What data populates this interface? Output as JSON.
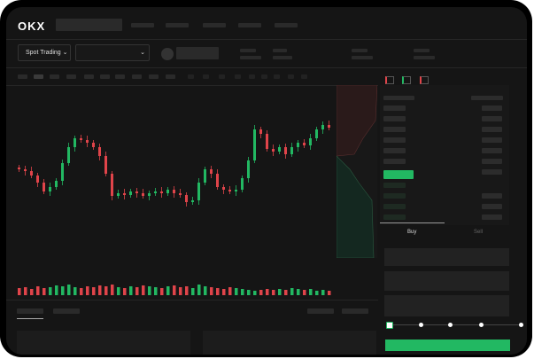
{
  "brand": "OKX",
  "header": {
    "trading_mode": "Spot Trading",
    "trading_mode_icon": "chevron-down-icon",
    "pair_select_icon": "chevron-down-icon"
  },
  "orderbook": {
    "view_icons": [
      "orderbook-both-icon",
      "orderbook-bids-icon",
      "orderbook-asks-icon"
    ]
  },
  "trade_panel": {
    "tabs": [
      "Buy",
      "Sell"
    ],
    "active_tab": "Buy",
    "slider_percent": 0,
    "slider_stops": 5
  },
  "colors": {
    "up": "#22b862",
    "down": "#e0444a",
    "background": "#151515"
  },
  "chart_data": {
    "type": "candlestick",
    "closes": [
      65,
      63,
      58,
      50,
      40,
      45,
      52,
      72,
      90,
      100,
      98,
      95,
      90,
      80,
      60,
      35,
      38,
      36,
      40,
      38,
      35,
      38,
      40,
      38,
      42,
      38,
      36,
      28,
      30,
      50,
      65,
      60,
      45,
      42,
      40,
      42,
      55,
      75,
      110,
      105,
      88,
      85,
      90,
      82,
      90,
      95,
      92,
      100,
      110,
      115,
      112
    ],
    "volumes": [
      8,
      9,
      7,
      10,
      8,
      9,
      11,
      10,
      12,
      9,
      8,
      10,
      9,
      11,
      10,
      12,
      9,
      8,
      10,
      9,
      11,
      10,
      9,
      8,
      10,
      11,
      9,
      10,
      8,
      12,
      10,
      9,
      8,
      7,
      9,
      8,
      7,
      6,
      5,
      6,
      7,
      6,
      7,
      6,
      8,
      7,
      6,
      7,
      5,
      6,
      5
    ]
  }
}
